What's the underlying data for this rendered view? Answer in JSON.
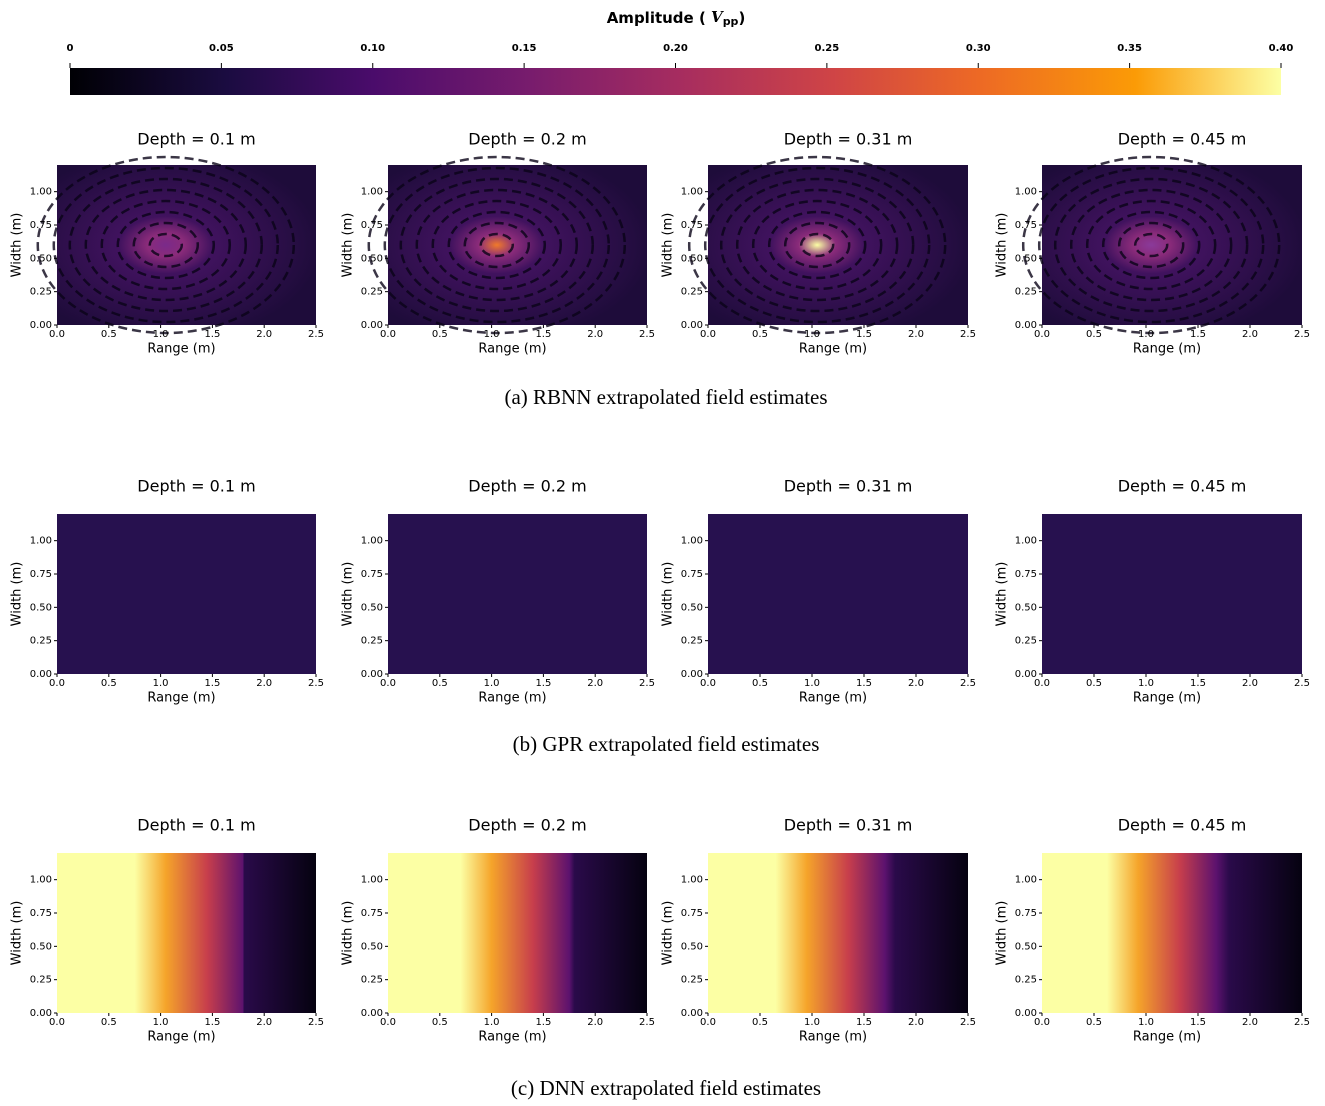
{
  "colorbar": {
    "title": {
      "text": "Amplitude (",
      "unit": "V",
      "unit_sub": "pp",
      "close": ")"
    },
    "lim": [
      0,
      0.4
    ],
    "ticks": [
      {
        "value": 0,
        "label": "0"
      },
      0.05,
      {
        "value": 0.1,
        "label": "0.10"
      },
      0.15,
      {
        "value": 0.2,
        "label": "0.20"
      },
      0.25,
      {
        "value": 0.3,
        "label": "0.30"
      },
      0.35,
      {
        "value": 0.4,
        "label": "0.40"
      }
    ],
    "colormap": "inferno"
  },
  "axes": {
    "xlabel": "Range (m)",
    "ylabel": "Width (m)",
    "xlim": [
      0,
      2.5
    ],
    "ylim": [
      0,
      1.2
    ],
    "xticks": [
      {
        "value": 0,
        "label": "0.0"
      },
      0.5,
      {
        "value": 1,
        "label": "1.0"
      },
      1.5,
      {
        "value": 2,
        "label": "2.0"
      },
      2.5
    ],
    "yticks": [
      {
        "value": 0,
        "label": "0.00"
      },
      0.25,
      {
        "value": 0.5,
        "label": "0.50"
      },
      0.75,
      {
        "value": 1,
        "label": "1.00"
      }
    ]
  },
  "groups": [
    {
      "caption": "(a) RBNN extrapolated field estimates",
      "panels": [
        {
          "title": "Depth = 0.1 m"
        },
        {
          "title": "Depth = 0.2 m"
        },
        {
          "title": "Depth = 0.31 m"
        },
        {
          "title": "Depth = 0.45 m"
        }
      ]
    },
    {
      "caption": "(b) GPR extrapolated field estimates",
      "panels": [
        {
          "title": "Depth = 0.1 m"
        },
        {
          "title": "Depth = 0.2 m"
        },
        {
          "title": "Depth = 0.31 m"
        },
        {
          "title": "Depth = 0.45 m"
        }
      ]
    },
    {
      "caption": "(c) DNN extrapolated field estimates",
      "panels": [
        {
          "title": "Depth = 0.1 m"
        },
        {
          "title": "Depth = 0.2 m"
        },
        {
          "title": "Depth = 0.31 m"
        },
        {
          "title": "Depth = 0.45 m"
        }
      ]
    }
  ]
}
